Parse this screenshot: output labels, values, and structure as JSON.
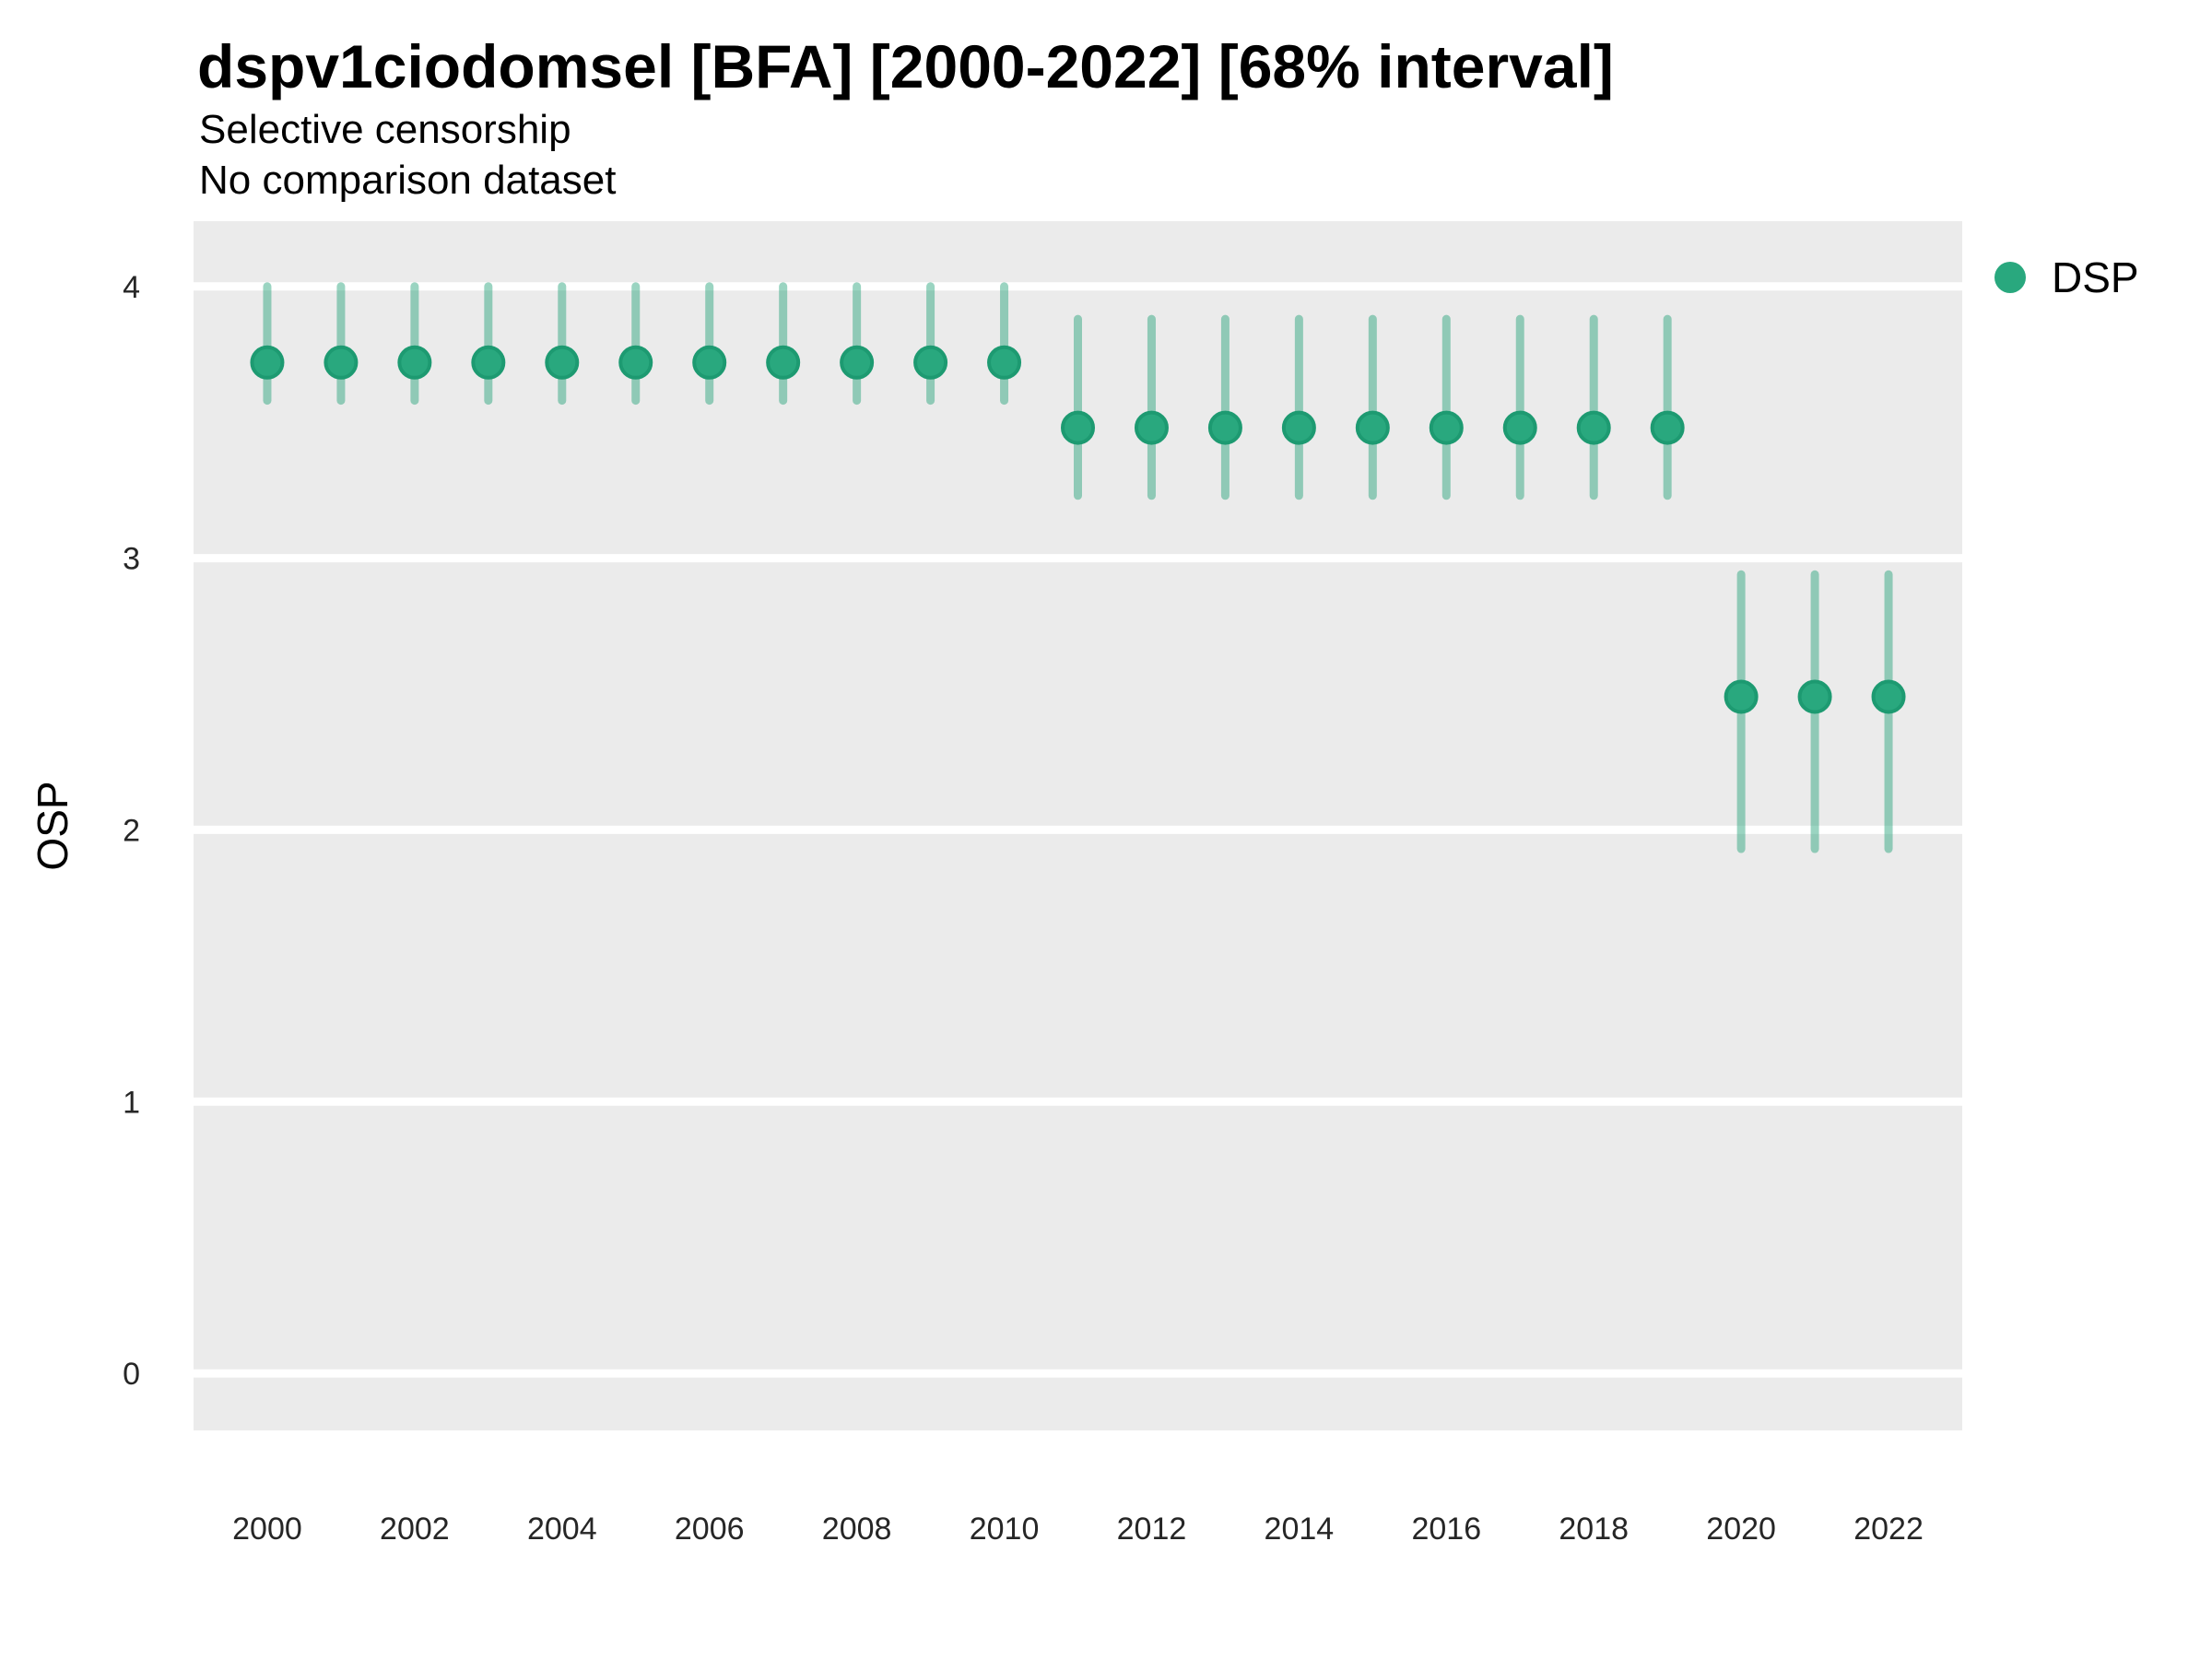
{
  "header": {
    "title": "dspv1ciodomsel [BFA] [2000-2022] [68% interval]",
    "subtitle1": "Selective censorship",
    "subtitle2": "No comparison dataset"
  },
  "legend": {
    "label": "DSP"
  },
  "axes": {
    "y_title": "OSP",
    "y_ticks": [
      0,
      1,
      2,
      3,
      4
    ],
    "x_ticks": [
      2000,
      2002,
      2004,
      2006,
      2008,
      2010,
      2012,
      2014,
      2016,
      2018,
      2020,
      2022
    ]
  },
  "colors": {
    "point": "#29a87e",
    "point_stroke": "#1d9a71",
    "errorbar": "rgba(32,159,118,0.45)",
    "panel_bg": "#ebebeb",
    "grid": "#ffffff",
    "axis_text": "#262626"
  },
  "chart_data": {
    "type": "scatter",
    "title": "dspv1ciodomsel [BFA] [2000-2022] [68% interval]",
    "subtitle": "Selective censorship / No comparison dataset",
    "interval": "68%",
    "xlabel": "",
    "ylabel": "OSP",
    "xlim": [
      1999,
      2023
    ],
    "ylim": [
      -0.21,
      4.24
    ],
    "grid": "white-major-on-gray-panel",
    "legend_position": "right-top",
    "x": [
      2000,
      2001,
      2002,
      2003,
      2004,
      2005,
      2006,
      2007,
      2008,
      2009,
      2010,
      2011,
      2012,
      2013,
      2014,
      2015,
      2016,
      2017,
      2018,
      2019,
      2020,
      2021,
      2022
    ],
    "series": [
      {
        "name": "DSP",
        "mid": [
          3.72,
          3.72,
          3.72,
          3.72,
          3.72,
          3.72,
          3.72,
          3.72,
          3.72,
          3.72,
          3.72,
          3.48,
          3.48,
          3.48,
          3.48,
          3.48,
          3.48,
          3.48,
          3.48,
          3.48,
          2.49,
          2.49,
          2.49
        ],
        "lo": [
          3.58,
          3.58,
          3.58,
          3.58,
          3.58,
          3.58,
          3.58,
          3.58,
          3.58,
          3.58,
          3.58,
          3.23,
          3.23,
          3.23,
          3.23,
          3.23,
          3.23,
          3.23,
          3.23,
          3.23,
          1.93,
          1.93,
          1.93
        ],
        "hi": [
          4.0,
          4.0,
          4.0,
          4.0,
          4.0,
          4.0,
          4.0,
          4.0,
          4.0,
          4.0,
          4.0,
          3.88,
          3.88,
          3.88,
          3.88,
          3.88,
          3.88,
          3.88,
          3.88,
          3.88,
          2.94,
          2.94,
          2.94
        ]
      }
    ]
  }
}
